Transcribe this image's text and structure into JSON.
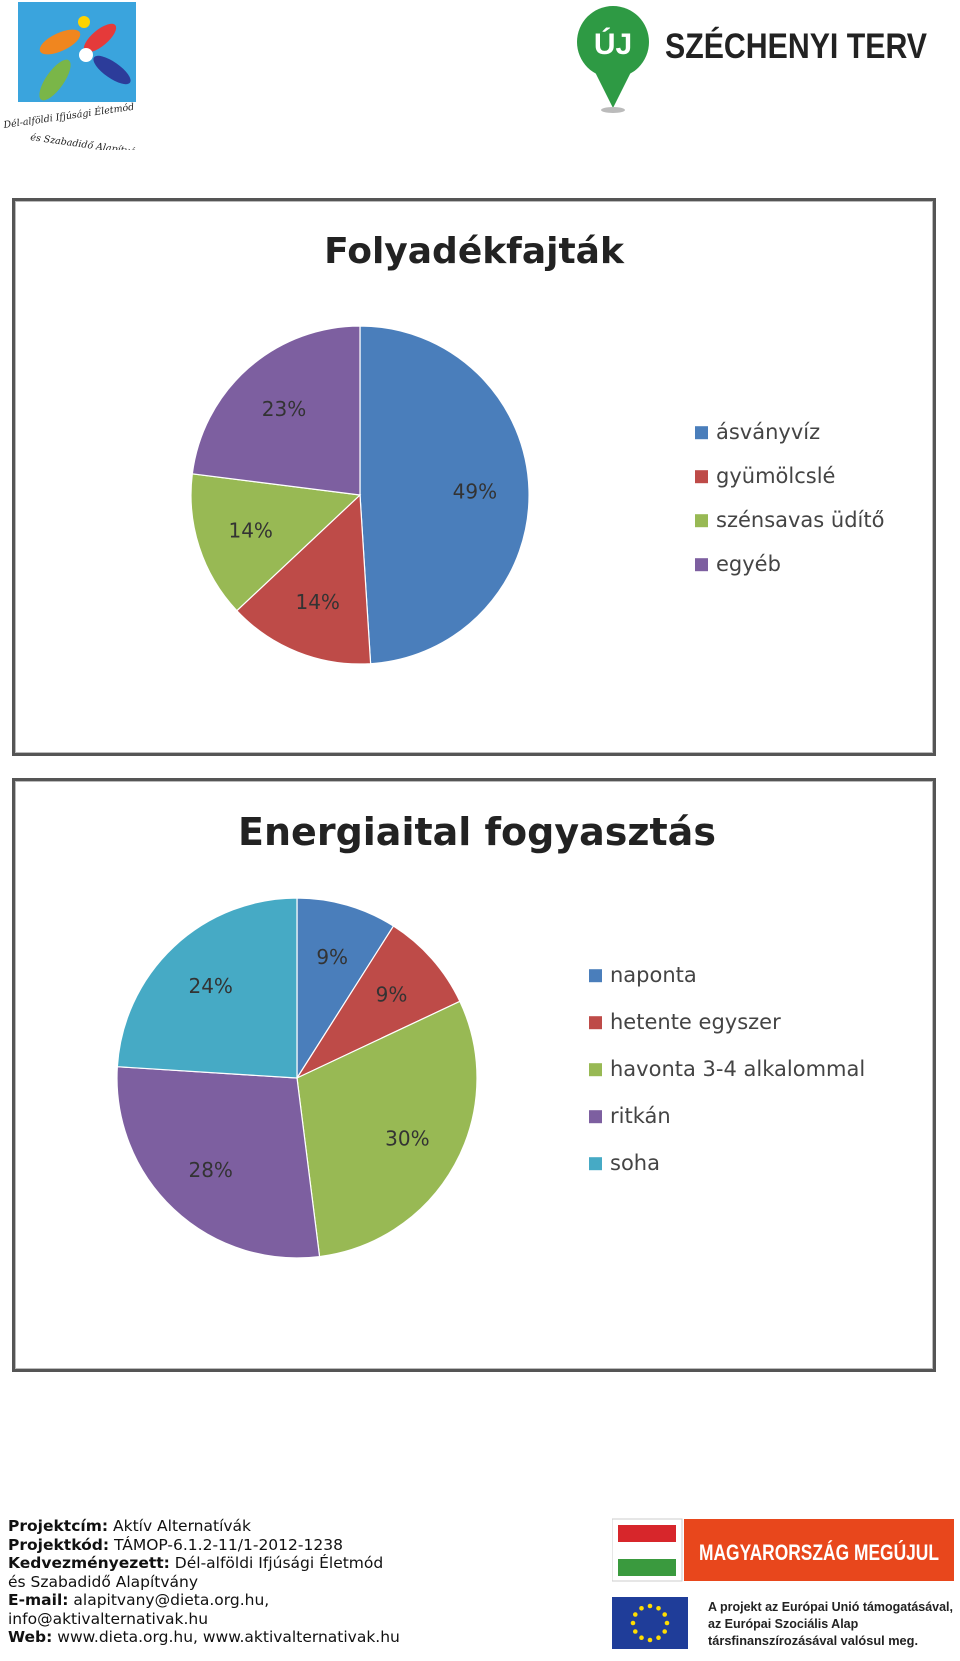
{
  "header": {
    "left_logo": {
      "icon": "foundation-flower-logo",
      "text_line1": "Dél-alföldi Ifjúsági Életmód",
      "text_line2": "és Szabadidő Alapítvány"
    },
    "right_logo": {
      "icon": "location-pin-logo",
      "pin_text": "ÚJ",
      "text": "SZÉCHENYI TERV",
      "brand_color": "#2e9a44"
    }
  },
  "chart_data": [
    {
      "type": "pie",
      "title": "Folyadékfajták",
      "categories": [
        "ásványvíz",
        "gyümölcslé",
        "szénsavas üdítő",
        "egyéb"
      ],
      "values": [
        49,
        14,
        14,
        23
      ],
      "labels": [
        "49%",
        "14%",
        "14%",
        "23%"
      ],
      "colors": [
        "#4a7ebb",
        "#be4b48",
        "#98b954",
        "#7d5fa0"
      ],
      "legend": "right"
    },
    {
      "type": "pie",
      "title": "Energiaital fogyasztás",
      "categories": [
        "naponta",
        "hetente egyszer",
        "havonta 3-4 alkalommal",
        "ritkán",
        "soha"
      ],
      "values": [
        9,
        9,
        30,
        28,
        24
      ],
      "labels": [
        "9%",
        "9%",
        "30%",
        "28%",
        "24%"
      ],
      "colors": [
        "#4a7ebb",
        "#be4b48",
        "#98b954",
        "#7d5fa0",
        "#46aac5"
      ],
      "legend": "right"
    }
  ],
  "footer": {
    "project_title_label": "Projektcím:",
    "project_title": "Aktív Alternatívák",
    "project_code_label": "Projektkód:",
    "project_code": "TÁMOP-6.1.2-11/1-2012-1238",
    "beneficiary_label": "Kedvezményezett:",
    "beneficiary_line1": "Dél-alföldi Ifjúsági Életmód",
    "beneficiary_line2": "és Szabadidő Alapítvány",
    "email_label": "E-mail:",
    "email_line1": "alapitvany@dieta.org.hu,",
    "email_line2": "info@aktivalternativak.hu",
    "web_label": "Web:",
    "web": "www.dieta.org.hu, www.aktivalternativak.hu",
    "banner_text": "MAGYARORSZÁG MEGÚJUL",
    "banner_color": "#e8471c",
    "eu_text_line1": "A projekt az Európai Unió támogatásával,",
    "eu_text_line2": "az Európai Szociális Alap",
    "eu_text_line3": "társfinanszírozásával valósul meg."
  }
}
